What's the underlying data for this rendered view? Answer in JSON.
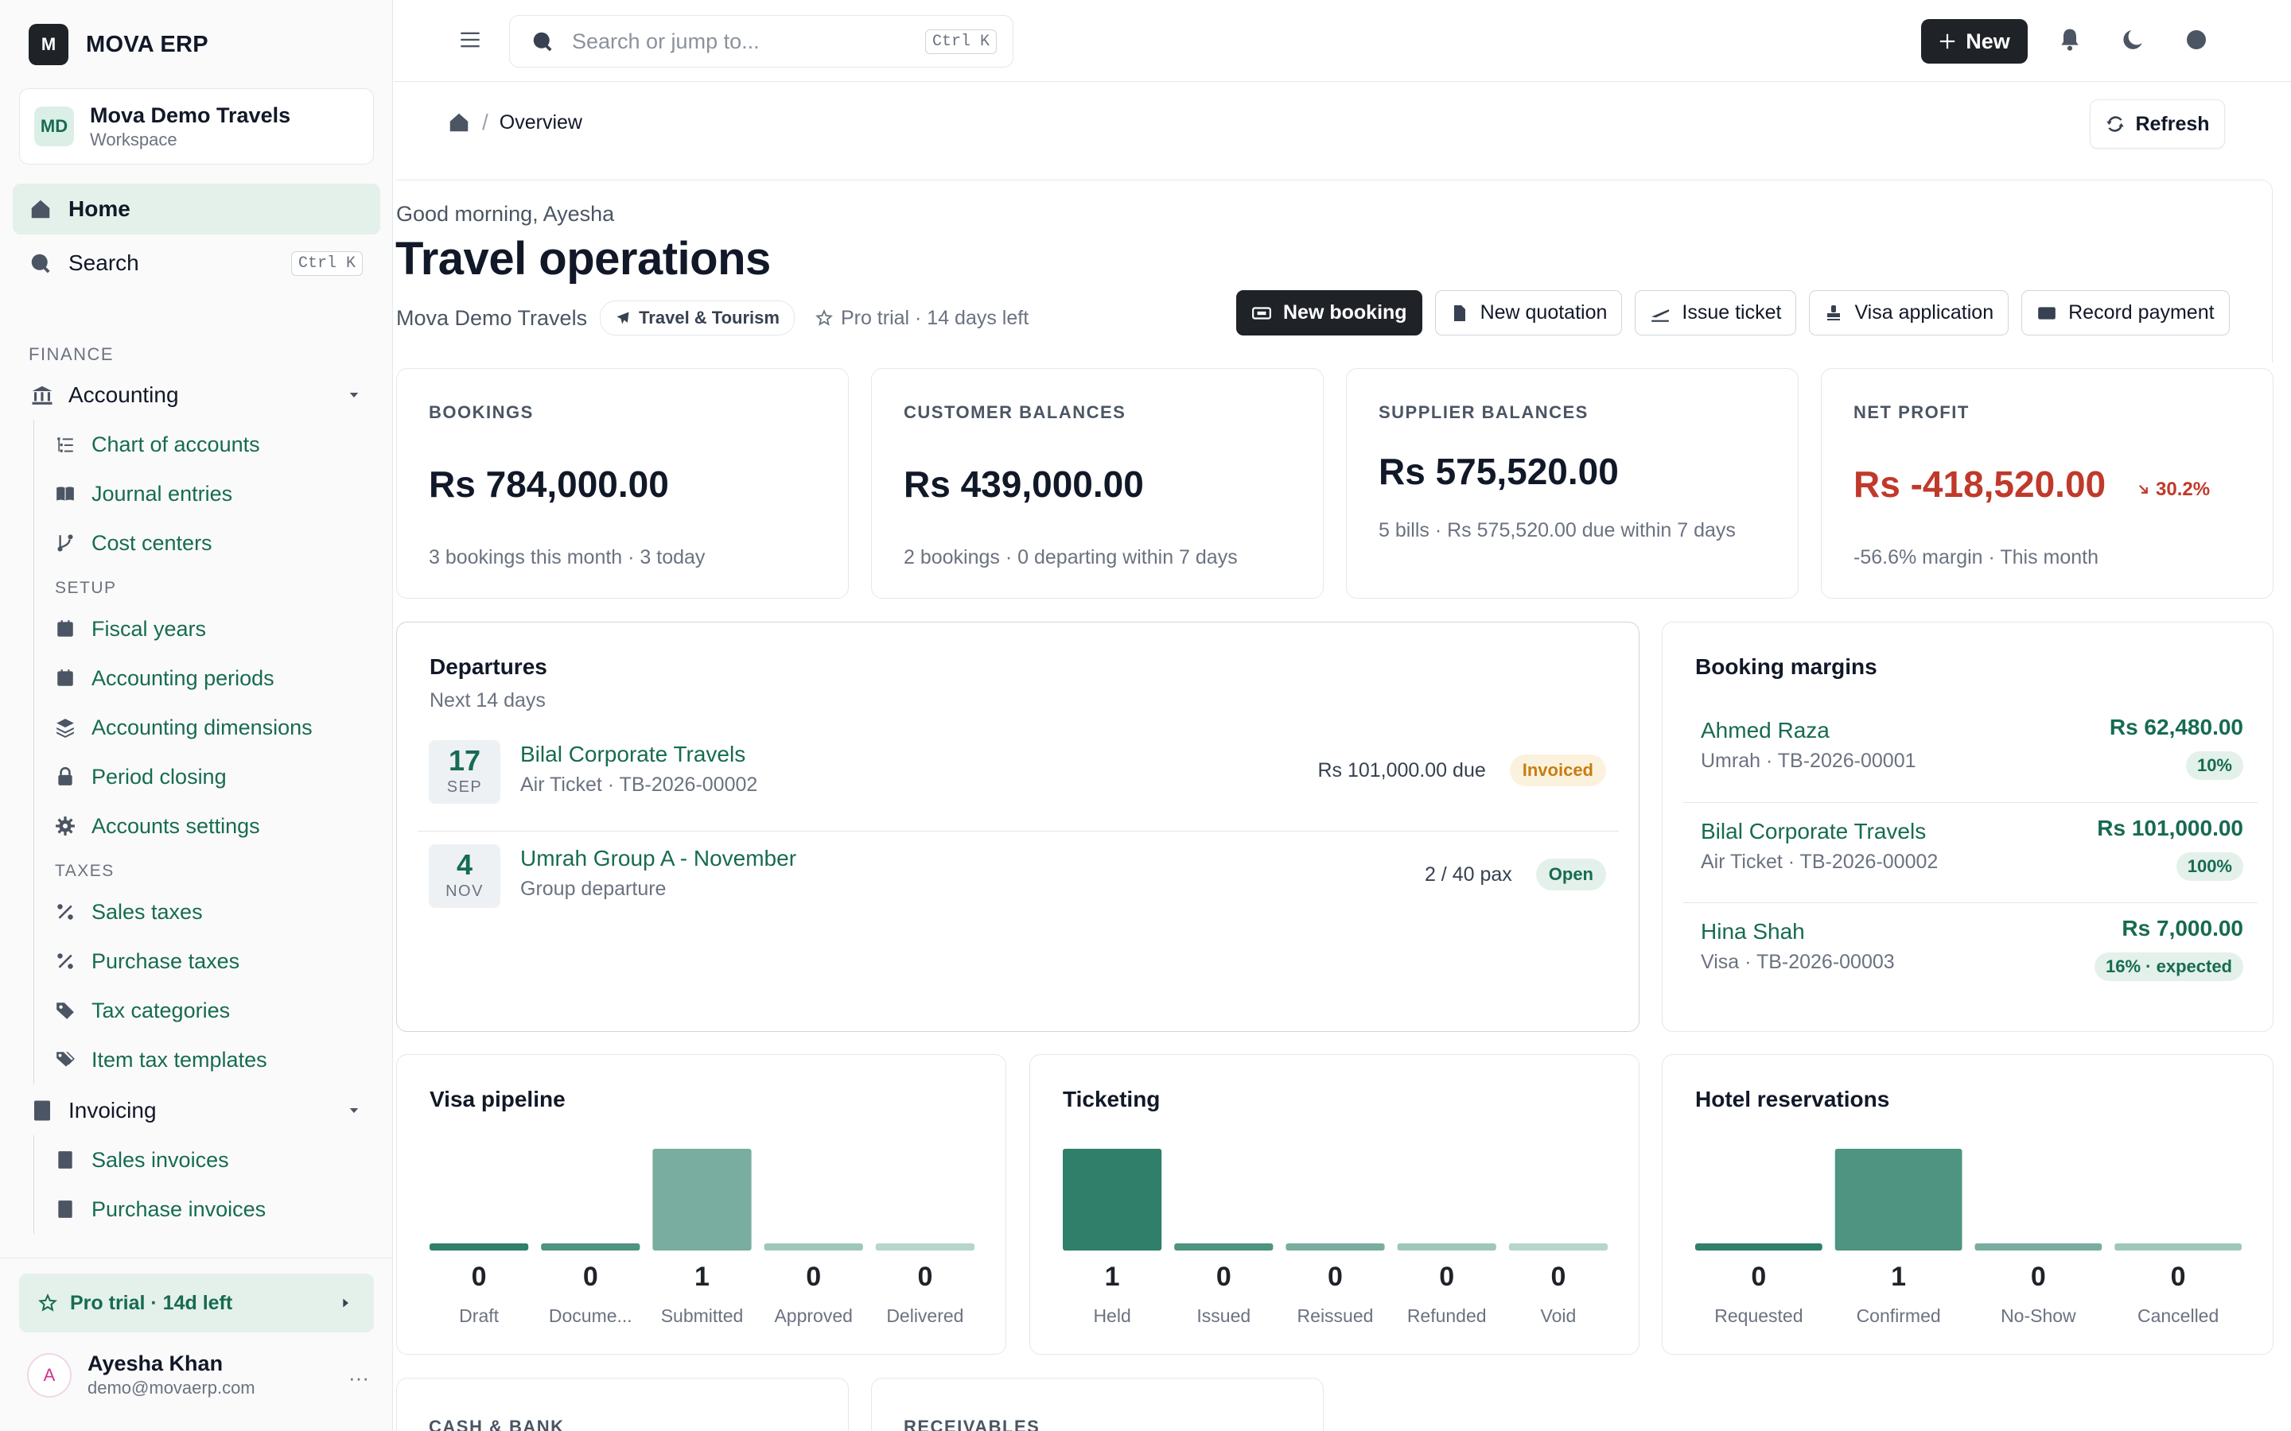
{
  "brand": {
    "logo_letter": "M",
    "name": "MOVA ERP"
  },
  "workspace": {
    "initials": "MD",
    "name": "Mova Demo Travels",
    "type": "Workspace"
  },
  "nav_top": [
    {
      "label": "Home",
      "icon": "home-icon",
      "active": true
    },
    {
      "label": "Search",
      "icon": "search-icon",
      "shortcut": "Ctrl K"
    }
  ],
  "sidebar": {
    "finance_label": "FINANCE",
    "accounting": {
      "label": "Accounting",
      "items": [
        "Chart of accounts",
        "Journal entries",
        "Cost centers"
      ],
      "setup_label": "SETUP",
      "setup_items": [
        "Fiscal years",
        "Accounting periods",
        "Accounting dimensions",
        "Period closing",
        "Accounts settings"
      ],
      "taxes_label": "TAXES",
      "tax_items": [
        "Sales taxes",
        "Purchase taxes",
        "Tax categories",
        "Item tax templates"
      ]
    },
    "invoicing": {
      "label": "Invoicing",
      "items": [
        "Sales invoices",
        "Purchase invoices"
      ]
    },
    "trial": "Pro trial · 14d left",
    "user": {
      "initial": "A",
      "name": "Ayesha Khan",
      "email": "demo@movaerp.com",
      "more": "···"
    }
  },
  "topbar": {
    "search_placeholder": "Search or jump to...",
    "search_shortcut": "Ctrl K",
    "new_label": "New"
  },
  "breadcrumb": {
    "separator": "/",
    "current": "Overview"
  },
  "refresh_label": "Refresh",
  "hero": {
    "greeting": "Good morning, Ayesha",
    "title": "Travel operations",
    "company": "Mova Demo Travels",
    "industry_chip": "Travel & Tourism",
    "trial": "Pro trial · 14 days left",
    "actions": [
      "New booking",
      "New quotation",
      "Issue ticket",
      "Visa application",
      "Record payment"
    ]
  },
  "stats": [
    {
      "label": "BOOKINGS",
      "value": "Rs 784,000.00",
      "sub": "3 bookings this month · 3 today"
    },
    {
      "label": "CUSTOMER BALANCES",
      "value": "Rs 439,000.00",
      "sub": "2 bookings · 0 departing within 7 days"
    },
    {
      "label": "SUPPLIER BALANCES",
      "value": "Rs 575,520.00",
      "sub": "5 bills · Rs 575,520.00 due within 7 days"
    },
    {
      "label": "NET PROFIT",
      "value": "Rs -418,520.00",
      "trend": "30.2%",
      "sub": "-56.6% margin · This month"
    }
  ],
  "departures": {
    "title": "Departures",
    "subtitle": "Next 14 days",
    "rows": [
      {
        "day": "17",
        "month": "SEP",
        "title": "Bilal Corporate Travels",
        "sub": "Air Ticket · TB-2026-00002",
        "right": "Rs 101,000.00 due",
        "badge": "Invoiced"
      },
      {
        "day": "4",
        "month": "NOV",
        "title": "Umrah Group A - November",
        "sub": "Group departure",
        "right": "2 / 40 pax",
        "badge": "Open"
      }
    ]
  },
  "margins": {
    "title": "Booking margins",
    "rows": [
      {
        "name": "Ahmed Raza",
        "sub": "Umrah · TB-2026-00001",
        "amount": "Rs 62,480.00",
        "pct": "10%"
      },
      {
        "name": "Bilal Corporate Travels",
        "sub": "Air Ticket · TB-2026-00002",
        "amount": "Rs 101,000.00",
        "pct": "100%"
      },
      {
        "name": "Hina Shah",
        "sub": "Visa · TB-2026-00003",
        "amount": "Rs 7,000.00",
        "pct": "16% · expected"
      }
    ]
  },
  "chart_data": [
    {
      "type": "bar",
      "title": "Visa pipeline",
      "categories": [
        "Draft",
        "Docume...",
        "Submitted",
        "Approved",
        "Delivered"
      ],
      "values": [
        0,
        0,
        1,
        0,
        0
      ]
    },
    {
      "type": "bar",
      "title": "Ticketing",
      "categories": [
        "Held",
        "Issued",
        "Reissued",
        "Refunded",
        "Void"
      ],
      "values": [
        1,
        0,
        0,
        0,
        0
      ]
    },
    {
      "type": "bar",
      "title": "Hotel reservations",
      "categories": [
        "Requested",
        "Confirmed",
        "No-Show",
        "Cancelled"
      ],
      "values": [
        0,
        1,
        0,
        0
      ]
    }
  ],
  "bottom": {
    "cash_label": "CASH & BANK",
    "receivables_label": "RECEIVABLES"
  },
  "colors": {
    "brand_green": "#176b52",
    "negative": "#c0392b",
    "bar_palette": [
      "#2f7f6a",
      "#4e9480",
      "#79ad9f",
      "#9ec7bb",
      "#b6d5cc"
    ]
  }
}
